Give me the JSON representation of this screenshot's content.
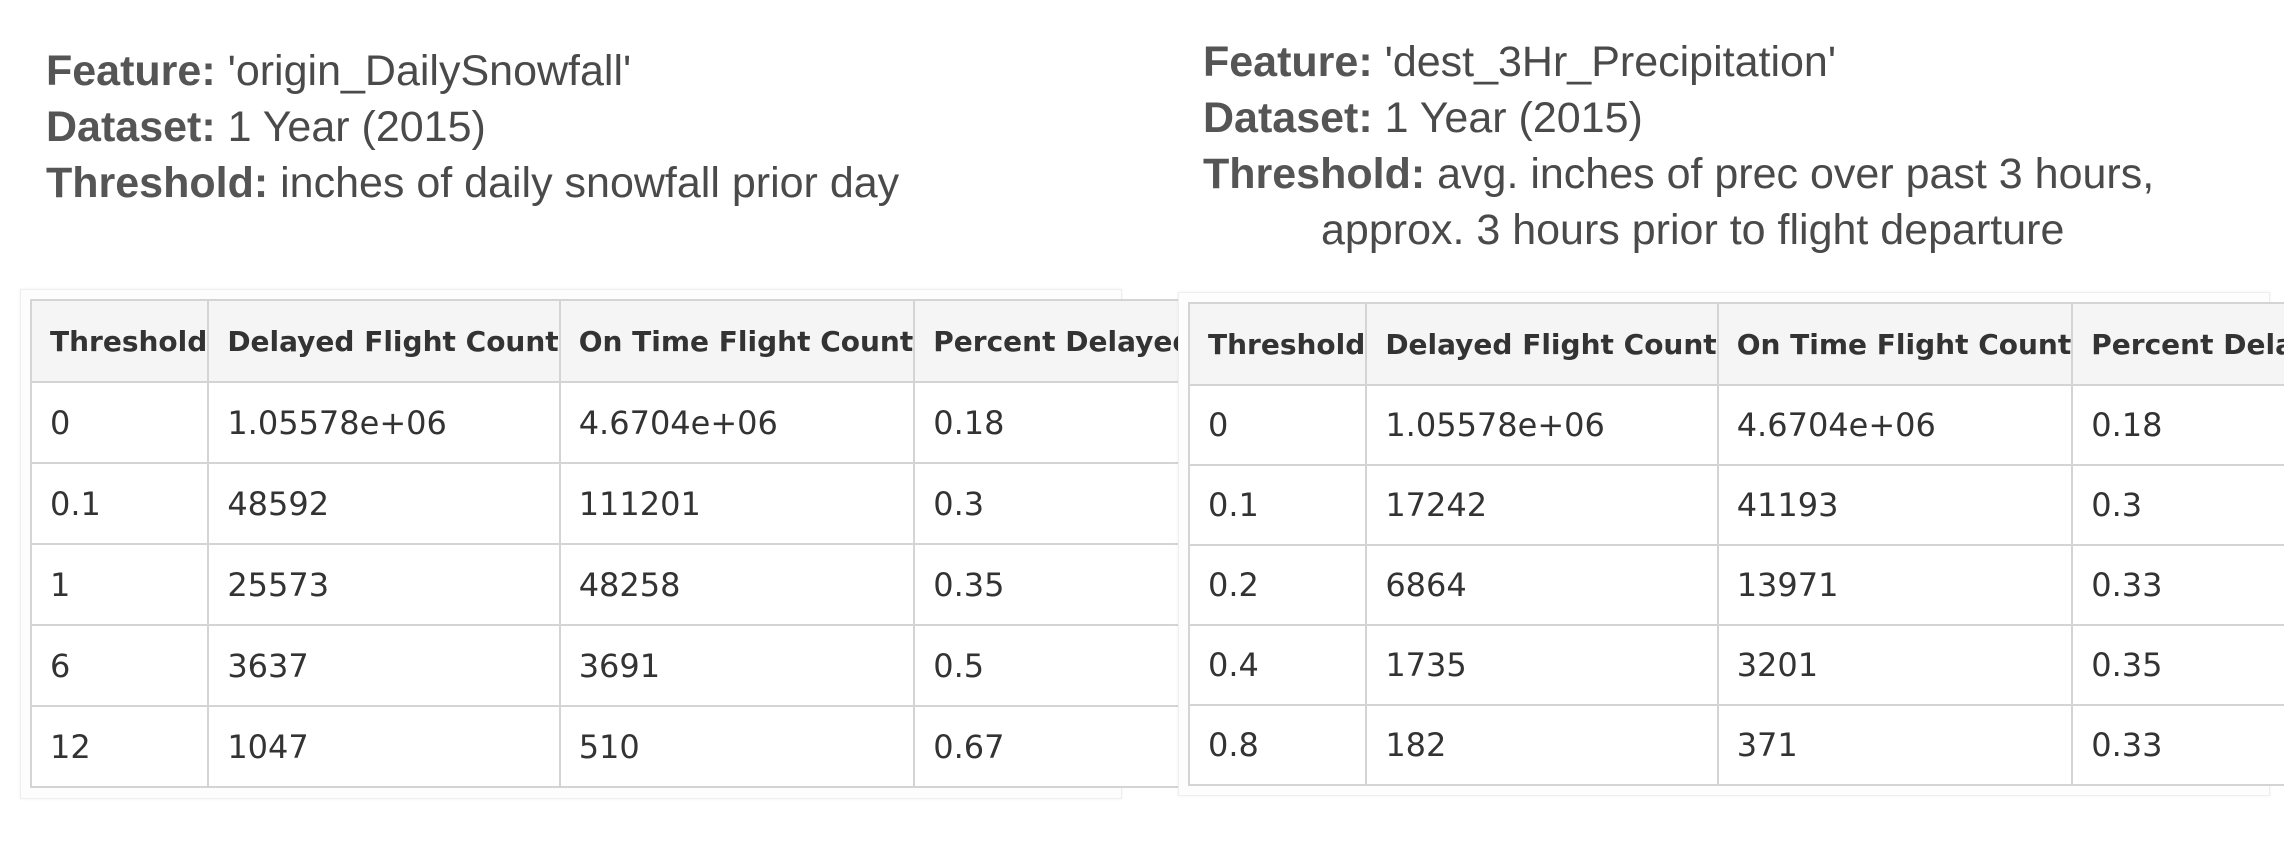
{
  "chart_data": [
    {
      "type": "table",
      "caption": [
        {
          "key": "Feature:",
          "value": " 'origin_DailySnowfall'"
        },
        {
          "key": "Dataset:",
          "value": " 1 Year (2015)"
        },
        {
          "key": "Threshold:",
          "value": " inches of daily snowfall prior day"
        }
      ],
      "columns": [
        "Threshold",
        "Delayed Flight Count",
        "On Time Flight Count",
        "Percent Delayed"
      ],
      "rows": [
        [
          "0",
          "1.05578e+06",
          "4.6704e+06",
          "0.18"
        ],
        [
          "0.1",
          "48592",
          "111201",
          "0.3"
        ],
        [
          "1",
          "25573",
          "48258",
          "0.35"
        ],
        [
          "6",
          "3637",
          "3691",
          "0.5"
        ],
        [
          "12",
          "1047",
          "510",
          "0.67"
        ]
      ]
    },
    {
      "type": "table",
      "caption": [
        {
          "key": "Feature:",
          "value": " 'dest_3Hr_Precipitation'"
        },
        {
          "key": "Dataset:",
          "value": " 1 Year (2015)"
        },
        {
          "key": "Threshold:",
          "value": " avg. inches of prec over past 3 hours,"
        },
        {
          "key": "",
          "value": "approx. 3 hours prior to flight departure"
        }
      ],
      "columns": [
        "Threshold",
        "Delayed Flight Count",
        "On Time Flight Count",
        "Percent Delayed"
      ],
      "rows": [
        [
          "0",
          "1.05578e+06",
          "4.6704e+06",
          "0.18"
        ],
        [
          "0.1",
          "17242",
          "41193",
          "0.3"
        ],
        [
          "0.2",
          "6864",
          "13971",
          "0.33"
        ],
        [
          "0.4",
          "1735",
          "3201",
          "0.35"
        ],
        [
          "0.8",
          "182",
          "371",
          "0.33"
        ]
      ]
    }
  ]
}
